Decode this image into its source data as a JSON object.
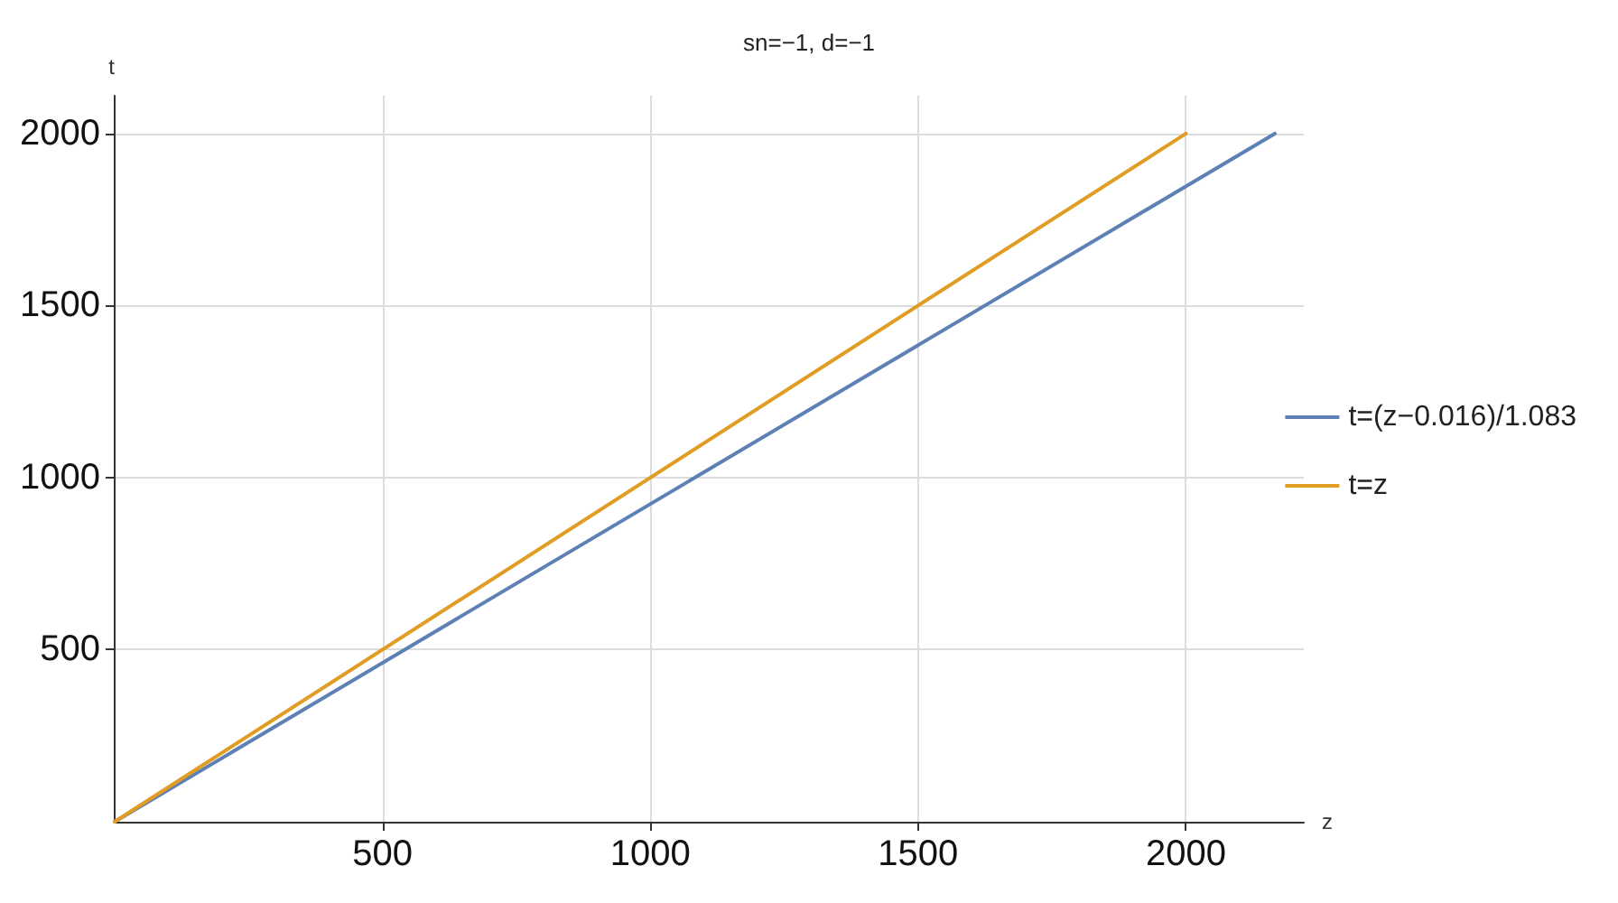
{
  "chart_data": {
    "type": "line",
    "title": "sn=−1, d=−1",
    "xlabel": "z",
    "ylabel": "t",
    "xlim": [
      0,
      2220
    ],
    "xticks": [
      500,
      1000,
      1500,
      2000
    ],
    "ylim": [
      0,
      2110
    ],
    "yticks": [
      500,
      1000,
      1500,
      2000
    ],
    "grid": true,
    "legend": "right",
    "marker": "none",
    "line_style": "solid",
    "series": [
      {
        "name": "t=(z−0.016)/1.083",
        "color": "#5e81b5",
        "x": [
          0,
          2166
        ],
        "values": [
          0,
          2000
        ]
      },
      {
        "name": "t=z",
        "color": "#e19c24",
        "x": [
          0,
          2000
        ],
        "values": [
          0,
          2000
        ]
      }
    ]
  }
}
